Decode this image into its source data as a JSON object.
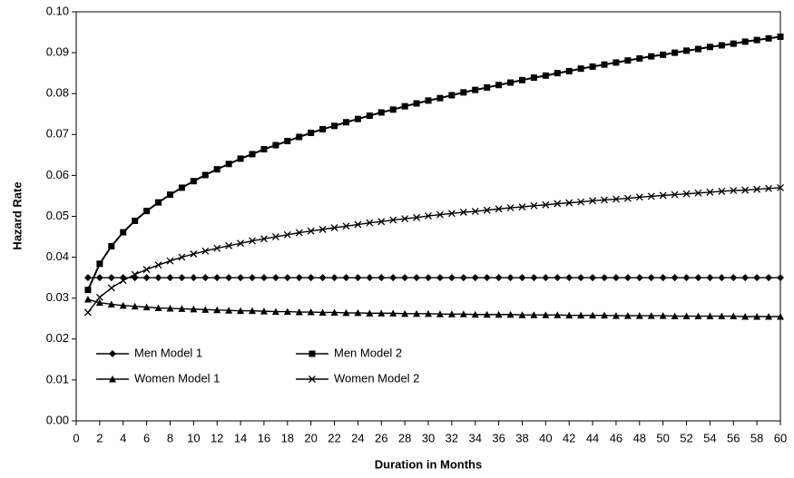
{
  "chart_data": {
    "type": "line",
    "x_label": "Duration in Months",
    "y_label": "Hazard Rate",
    "x": [
      1,
      2,
      3,
      4,
      5,
      6,
      7,
      8,
      9,
      10,
      11,
      12,
      13,
      14,
      15,
      16,
      17,
      18,
      19,
      20,
      21,
      22,
      23,
      24,
      25,
      26,
      27,
      28,
      29,
      30,
      31,
      32,
      33,
      34,
      35,
      36,
      37,
      38,
      39,
      40,
      41,
      42,
      43,
      44,
      45,
      46,
      47,
      48,
      49,
      50,
      51,
      52,
      53,
      54,
      55,
      56,
      57,
      58,
      59,
      60
    ],
    "xlim": [
      0,
      60
    ],
    "xticks": [
      0,
      2,
      4,
      6,
      8,
      10,
      12,
      14,
      16,
      18,
      20,
      22,
      24,
      26,
      28,
      30,
      32,
      34,
      36,
      38,
      40,
      42,
      44,
      46,
      48,
      50,
      52,
      54,
      56,
      58,
      60
    ],
    "ylim": [
      0,
      0.1
    ],
    "yticks": [
      {
        "value": 0,
        "label": "0.00"
      },
      {
        "value": 0.01,
        "label": "0.01"
      },
      {
        "value": 0.02,
        "label": "0.02"
      },
      {
        "value": 0.03,
        "label": "0.03"
      },
      {
        "value": 0.04,
        "label": "0.04"
      },
      {
        "value": 0.05,
        "label": "0.05"
      },
      {
        "value": 0.06,
        "label": "0.06"
      },
      {
        "value": 0.07,
        "label": "0.07"
      },
      {
        "value": 0.08,
        "label": "0.08"
      },
      {
        "value": 0.09,
        "label": "0.09"
      },
      {
        "value": 0.1,
        "label": "0.10"
      }
    ],
    "grid": false,
    "legend": "lower left",
    "series": [
      {
        "name": "Men Model 1",
        "color": "#000000",
        "marker": "diamond",
        "values": [
          0.035,
          0.035,
          0.035,
          0.035,
          0.035,
          0.035,
          0.035,
          0.035,
          0.035,
          0.035,
          0.035,
          0.035,
          0.035,
          0.035,
          0.035,
          0.035,
          0.035,
          0.035,
          0.035,
          0.035,
          0.035,
          0.035,
          0.035,
          0.035,
          0.035,
          0.035,
          0.035,
          0.035,
          0.035,
          0.035,
          0.035,
          0.035,
          0.035,
          0.035,
          0.035,
          0.035,
          0.035,
          0.035,
          0.035,
          0.035,
          0.035,
          0.035,
          0.035,
          0.035,
          0.035,
          0.035,
          0.035,
          0.035,
          0.035,
          0.035,
          0.035,
          0.035,
          0.035,
          0.035,
          0.035,
          0.035,
          0.035,
          0.035,
          0.035,
          0.035
        ]
      },
      {
        "name": "Men Model 2",
        "color": "#000000",
        "marker": "square",
        "values": [
          0.032,
          0.0384,
          0.0427,
          0.0461,
          0.0489,
          0.0513,
          0.0534,
          0.0553,
          0.057,
          0.0586,
          0.0601,
          0.0615,
          0.0628,
          0.0641,
          0.0652,
          0.0664,
          0.0674,
          0.0684,
          0.0694,
          0.0704,
          0.0713,
          0.0721,
          0.073,
          0.0738,
          0.0746,
          0.0754,
          0.0761,
          0.0769,
          0.0776,
          0.0783,
          0.0789,
          0.0796,
          0.0803,
          0.0809,
          0.0815,
          0.0821,
          0.0827,
          0.0833,
          0.0839,
          0.0844,
          0.085,
          0.0855,
          0.0861,
          0.0866,
          0.0871,
          0.0876,
          0.0881,
          0.0886,
          0.0891,
          0.0895,
          0.09,
          0.0905,
          0.0909,
          0.0914,
          0.0918,
          0.0922,
          0.0927,
          0.0931,
          0.0935,
          0.0939
        ]
      },
      {
        "name": "Women Model 1",
        "color": "#000000",
        "marker": "triangle",
        "values": [
          0.0297,
          0.0289,
          0.0285,
          0.0282,
          0.028,
          0.0278,
          0.0276,
          0.0275,
          0.0274,
          0.0273,
          0.0272,
          0.0271,
          0.027,
          0.0269,
          0.0269,
          0.0268,
          0.0267,
          0.0267,
          0.0266,
          0.0266,
          0.0265,
          0.0265,
          0.0264,
          0.0264,
          0.0263,
          0.0263,
          0.0263,
          0.0262,
          0.0262,
          0.0262,
          0.0261,
          0.0261,
          0.0261,
          0.026,
          0.026,
          0.026,
          0.026,
          0.0259,
          0.0259,
          0.0259,
          0.0259,
          0.0258,
          0.0258,
          0.0258,
          0.0258,
          0.0257,
          0.0257,
          0.0257,
          0.0257,
          0.0257,
          0.0256,
          0.0256,
          0.0256,
          0.0256,
          0.0256,
          0.0256,
          0.0255,
          0.0255,
          0.0255,
          0.0255
        ]
      },
      {
        "name": "Women Model 2",
        "color": "#000000",
        "marker": "x",
        "values": [
          0.0265,
          0.0302,
          0.0325,
          0.0343,
          0.0358,
          0.037,
          0.0381,
          0.0391,
          0.04,
          0.0408,
          0.0415,
          0.0422,
          0.0428,
          0.0434,
          0.044,
          0.0445,
          0.045,
          0.0455,
          0.046,
          0.0464,
          0.0468,
          0.0472,
          0.0476,
          0.048,
          0.0484,
          0.0487,
          0.0491,
          0.0494,
          0.0497,
          0.0501,
          0.0504,
          0.0507,
          0.051,
          0.0512,
          0.0515,
          0.0518,
          0.0521,
          0.0523,
          0.0526,
          0.0528,
          0.0531,
          0.0533,
          0.0535,
          0.0538,
          0.054,
          0.0542,
          0.0544,
          0.0547,
          0.0549,
          0.0551,
          0.0553,
          0.0555,
          0.0557,
          0.0559,
          0.0561,
          0.0563,
          0.0564,
          0.0566,
          0.0568,
          0.057
        ]
      }
    ]
  }
}
